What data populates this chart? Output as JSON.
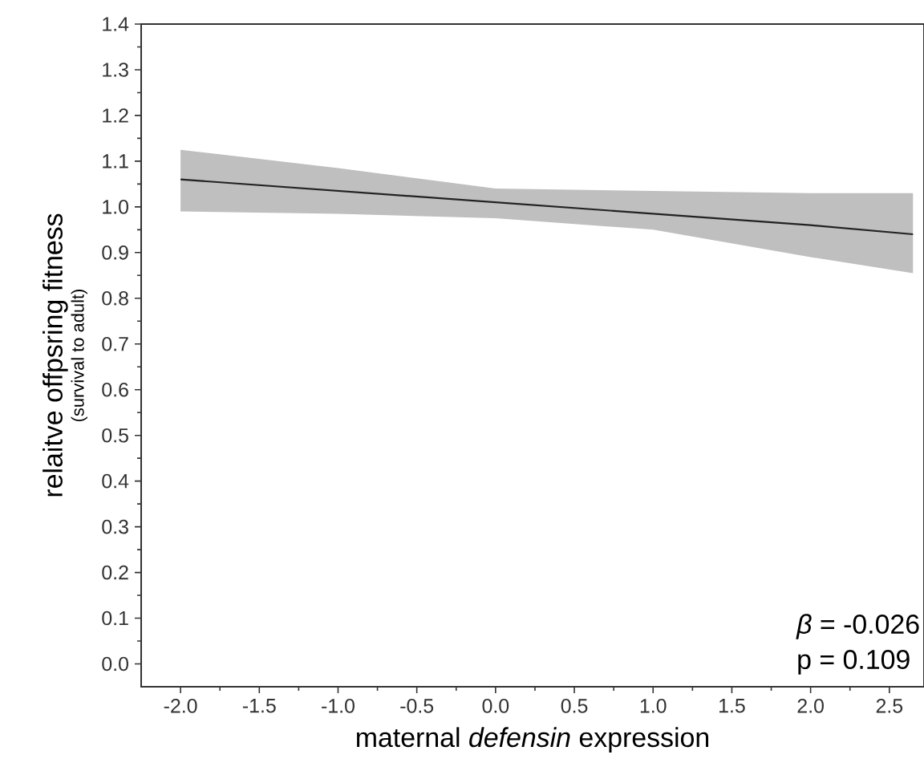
{
  "chart_data": {
    "type": "line",
    "xlabel": "maternal *defensin* expression",
    "ylabel": "relaitve offpsring fitness",
    "annotations": [
      "(survival to adult)",
      "*β* = -0.026",
      "p = 0.109"
    ],
    "series": [
      {
        "color": "#222222",
        "x": [
          -2.0,
          -1.0,
          0.0,
          1.0,
          2.0,
          2.65
        ],
        "values": [
          1.06,
          1.035,
          1.01,
          0.985,
          0.96,
          0.94
        ],
        "lower": [
          0.99,
          0.985,
          0.975,
          0.95,
          0.89,
          0.855
        ],
        "upper": [
          1.125,
          1.085,
          1.04,
          1.035,
          1.03,
          1.03
        ]
      }
    ],
    "xlim": [
      -2.25,
      2.72
    ],
    "ylim": [
      -0.05,
      1.4
    ],
    "xticks": [
      {
        "value": -2.0,
        "label": "-2.0"
      },
      {
        "value": -1.5,
        "label": "-1.5"
      },
      {
        "value": -1.0,
        "label": "-1.0"
      },
      {
        "value": -0.5,
        "label": "-0.5"
      },
      {
        "value": 0.0,
        "label": "0.0"
      },
      {
        "value": 0.5,
        "label": "0.5"
      },
      {
        "value": 1.0,
        "label": "1.0"
      },
      {
        "value": 1.5,
        "label": "1.5"
      },
      {
        "value": 2.0,
        "label": "2.0"
      },
      {
        "value": 2.5,
        "label": "2.5"
      }
    ],
    "yticks": [
      {
        "value": 0.0,
        "label": "0.0"
      },
      0.1,
      0.2,
      0.3,
      0.4,
      0.5,
      0.6,
      0.7,
      0.8,
      0.9,
      {
        "value": 1.0,
        "label": "1.0"
      },
      1.1,
      1.2,
      1.3,
      1.4
    ],
    "marker": "none",
    "line_style": "solid"
  }
}
